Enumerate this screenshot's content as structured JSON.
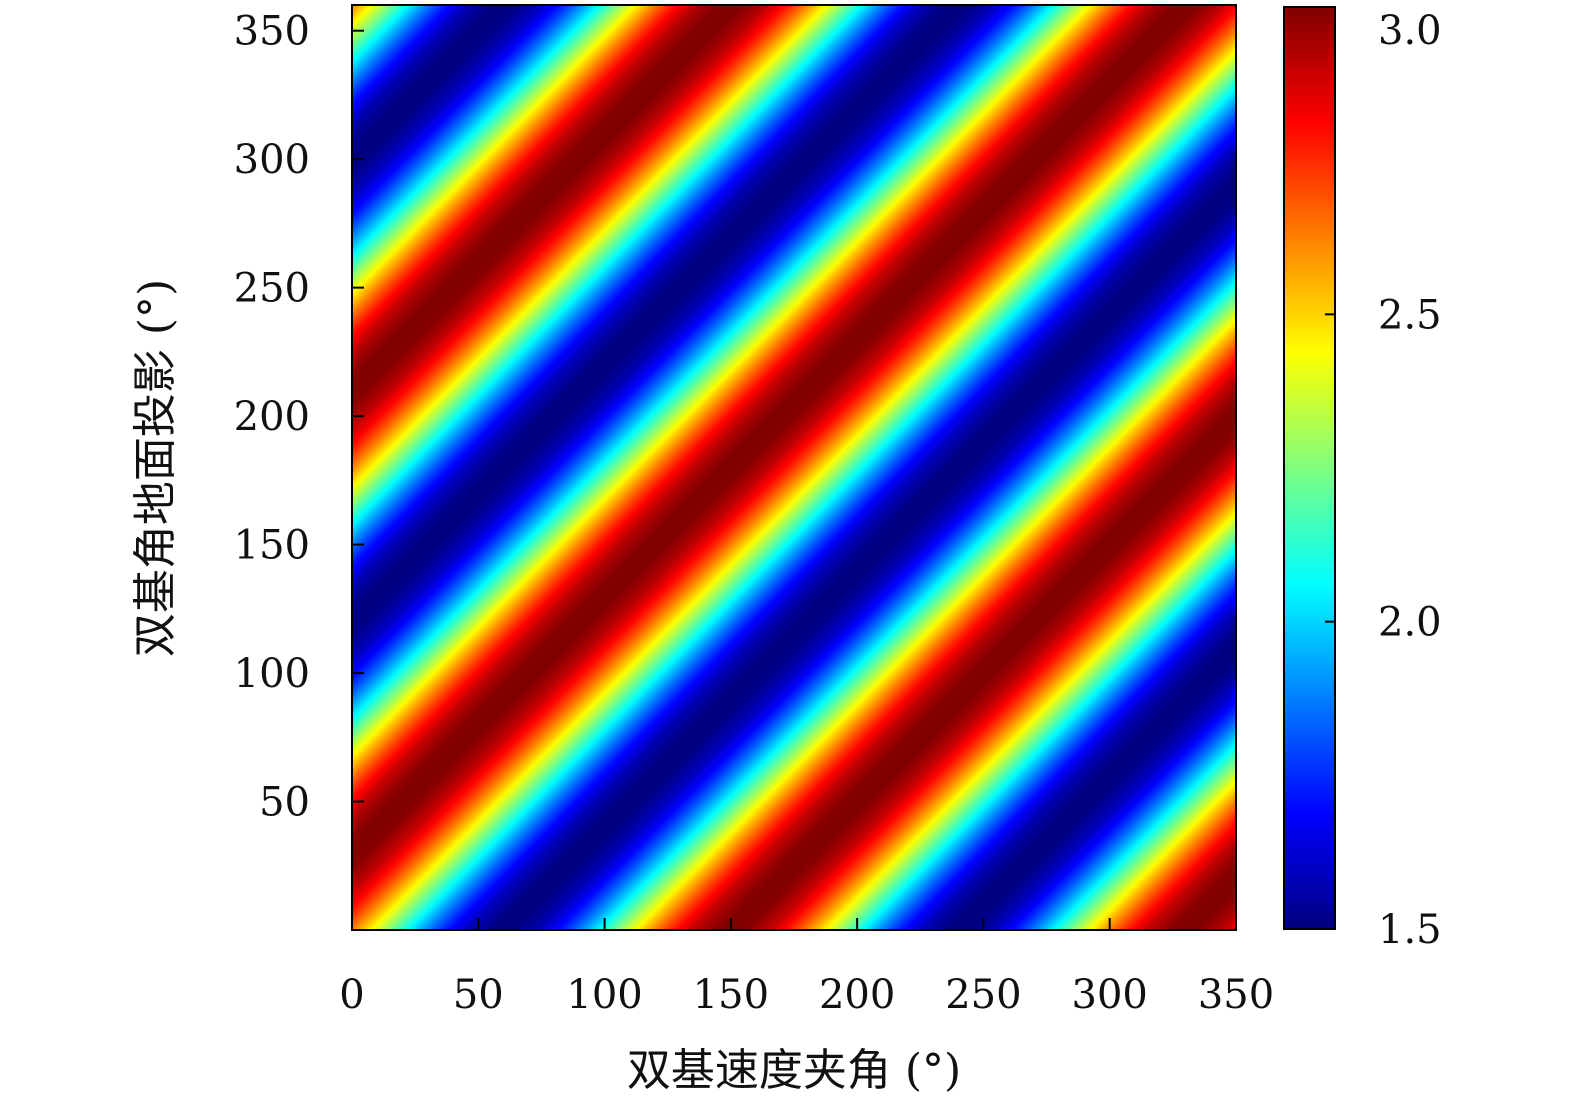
{
  "chart_data": {
    "type": "heatmap",
    "title": "",
    "xlabel": "双基速度夹角 (°)",
    "ylabel": "双基角地面投影 (°)",
    "xlim": [
      0,
      350
    ],
    "ylim": [
      0,
      360
    ],
    "x_ticks": [
      0,
      50,
      100,
      150,
      200,
      250,
      300,
      350
    ],
    "y_ticks": [
      50,
      100,
      150,
      200,
      250,
      300,
      350
    ],
    "x_tick_labels": [
      "0",
      "50",
      "100",
      "150",
      "200",
      "250",
      "300",
      "350"
    ],
    "y_tick_labels": [
      "50",
      "100",
      "150",
      "200",
      "250",
      "300",
      "350"
    ],
    "colorbar": {
      "range": [
        1.5,
        3.0
      ],
      "ticks": [
        1.5,
        2.0,
        2.5,
        3.0
      ],
      "tick_labels": [
        "1.5",
        "2.0",
        "2.5",
        "3.0"
      ],
      "colormap": "jet"
    },
    "grid": false,
    "pattern": {
      "description_free_formula": "z = 2.25 + 0.75*cos(2*(y - x) + phase)",
      "band_period_deg": 180,
      "maxima_at_y_minus_x_deg": [
        -150,
        30,
        210
      ],
      "minima_at_y_minus_x_deg": [
        -60,
        120,
        300
      ]
    }
  }
}
